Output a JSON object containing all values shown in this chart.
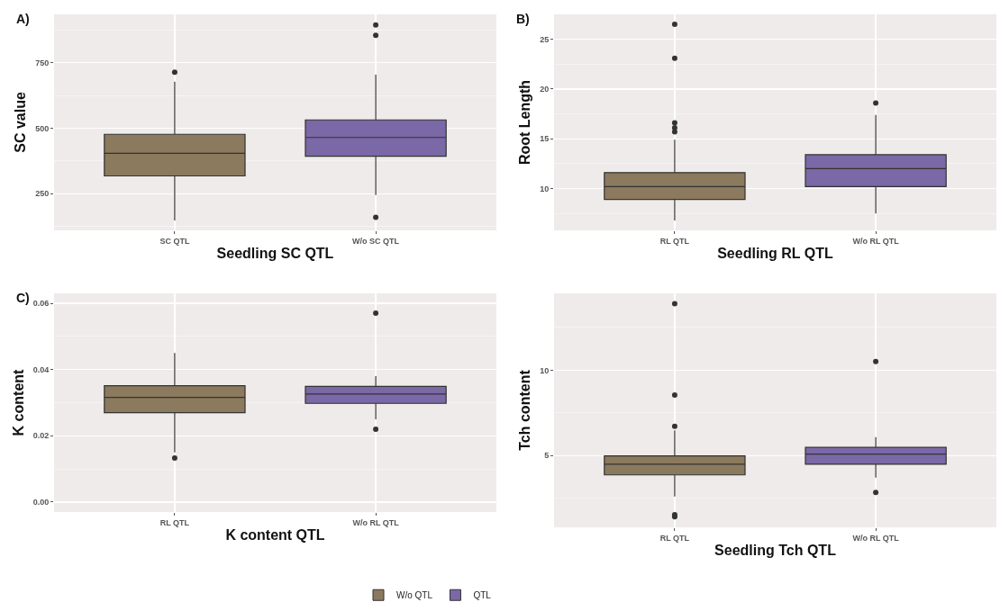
{
  "chart_data": [
    {
      "type": "box",
      "categories": [
        "SC QTL",
        "W/o SC QTL"
      ],
      "xlabel": "Seedling SC QTL",
      "ylabel": "SC value",
      "annotations": [
        "A)"
      ],
      "ylim": [
        110,
        935
      ],
      "yticks": [
        250,
        500,
        750
      ],
      "grid": true,
      "series": [
        {
          "color": "#8b7a5e",
          "boxes": [
            {
              "low": 148,
              "q1": 318,
              "median": 404,
              "q3": 477,
              "high": 678,
              "outliers": [
                714
              ]
            },
            null
          ]
        },
        {
          "color": "#7b68a6",
          "boxes": [
            null,
            {
              "low": 245,
              "q1": 393,
              "median": 465,
              "q3": 532,
              "high": 705,
              "outliers": [
                895,
                855,
                160
              ]
            }
          ]
        }
      ]
    },
    {
      "type": "box",
      "categories": [
        "RL QTL",
        "W/o RL QTL"
      ],
      "xlabel": "Seedling RL QTL",
      "ylabel": "Root Length",
      "annotations": [
        "B)"
      ],
      "ylim": [
        5.8,
        27.5
      ],
      "yticks": [
        10,
        15,
        20,
        25
      ],
      "grid": true,
      "series": [
        {
          "color": "#8b7a5e",
          "boxes": [
            {
              "low": 6.8,
              "q1": 8.9,
              "median": 10.2,
              "q3": 11.6,
              "high": 14.9,
              "outliers": [
                26.5,
                23.1,
                16.6,
                16.1,
                15.7
              ]
            },
            null
          ]
        },
        {
          "color": "#7b68a6",
          "boxes": [
            null,
            {
              "low": 7.5,
              "q1": 10.2,
              "median": 12.0,
              "q3": 13.4,
              "high": 17.4,
              "outliers": [
                18.6
              ]
            }
          ]
        }
      ]
    },
    {
      "type": "box",
      "categories": [
        "RL QTL",
        "W/o RL QTL"
      ],
      "xlabel": "K content QTL",
      "ylabel": "K content",
      "annotations": [
        "C)"
      ],
      "ylim": [
        -0.003,
        0.063
      ],
      "yticks": [
        {
          "value": 0,
          "label": "0.00"
        },
        {
          "value": 0.02,
          "label": "0.02"
        },
        {
          "value": 0.04,
          "label": "0.04"
        },
        {
          "value": 0.06,
          "label": "0.06"
        }
      ],
      "grid": true,
      "legend": "bottom",
      "series": [
        {
          "name": "W/o QTL",
          "color": "#8b7a5e",
          "boxes": [
            {
              "low": 0.015,
              "q1": 0.027,
              "median": 0.0316,
              "q3": 0.0351,
              "high": 0.045,
              "outliers": [
                0.0133
              ]
            },
            null
          ]
        },
        {
          "name": "QTL",
          "color": "#7b68a6",
          "boxes": [
            null,
            {
              "low": 0.025,
              "q1": 0.0298,
              "median": 0.0326,
              "q3": 0.0349,
              "high": 0.038,
              "outliers": [
                0.057,
                0.022
              ]
            }
          ]
        }
      ]
    },
    {
      "type": "box",
      "categories": [
        "RL QTL",
        "W/o RL QTL"
      ],
      "xlabel": "Seedling Tch QTL",
      "ylabel": "Tch content",
      "ylim": [
        0.8,
        14.5
      ],
      "yticks": [
        5,
        10
      ],
      "grid": true,
      "series": [
        {
          "color": "#8b7a5e",
          "boxes": [
            {
              "low": 2.6,
              "q1": 3.87,
              "median": 4.49,
              "q3": 4.98,
              "high": 6.48,
              "outliers": [
                13.9,
                8.55,
                6.71,
                1.54,
                1.42
              ]
            },
            null
          ]
        },
        {
          "color": "#7b68a6",
          "boxes": [
            null,
            {
              "low": 3.71,
              "q1": 4.49,
              "median": 5.09,
              "q3": 5.48,
              "high": 6.08,
              "outliers": [
                10.51,
                2.84
              ]
            }
          ]
        }
      ]
    }
  ]
}
